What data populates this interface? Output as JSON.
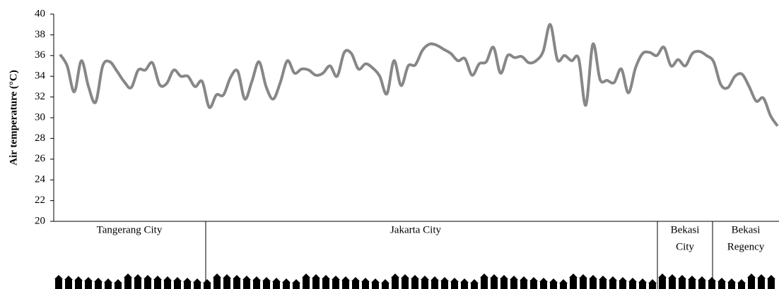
{
  "chart_data": {
    "type": "line",
    "y_label": "Air temperature (°C)",
    "ylim": [
      20,
      40
    ],
    "yticks": [
      20,
      22,
      24,
      26,
      28,
      30,
      32,
      34,
      36,
      38,
      40
    ],
    "color": "#878787",
    "values": [
      36.1,
      35,
      32.5,
      35.5,
      33,
      31.5,
      35,
      35.4,
      34.5,
      33.5,
      32.9,
      34.6,
      34.6,
      35.3,
      33.2,
      33.3,
      34.6,
      34,
      34,
      33,
      33.5,
      31,
      32.2,
      32.2,
      33.9,
      34.5,
      31.8,
      33.5,
      35.4,
      33,
      31.8,
      33.4,
      35.5,
      34.3,
      34.7,
      34.6,
      34.1,
      34.3,
      35,
      34,
      36.3,
      36.2,
      34.7,
      35.2,
      34.8,
      34,
      32.3,
      35.5,
      33.1,
      35,
      35.1,
      36.5,
      37.1,
      37,
      36.6,
      36.2,
      35.5,
      35.7,
      34.1,
      35.2,
      35.4,
      36.8,
      34.3,
      36,
      35.8,
      35.9,
      35.3,
      35.5,
      36.4,
      39,
      35.6,
      36,
      35.5,
      35.7,
      31.2,
      37.1,
      33.7,
      33.6,
      33.4,
      34.7,
      32.4,
      34.8,
      36.2,
      36.3,
      36,
      36.8,
      35,
      35.6,
      35,
      36.2,
      36.4,
      36,
      35.4,
      33.2,
      32.9,
      34,
      34.2,
      33,
      31.6,
      31.9,
      30.2,
      29.2
    ],
    "regions": [
      [
        "Tangerang City"
      ],
      [
        "Jakarta City"
      ],
      [
        "Bekasi",
        "City"
      ],
      [
        "Bekasi",
        "Regency"
      ]
    ]
  }
}
